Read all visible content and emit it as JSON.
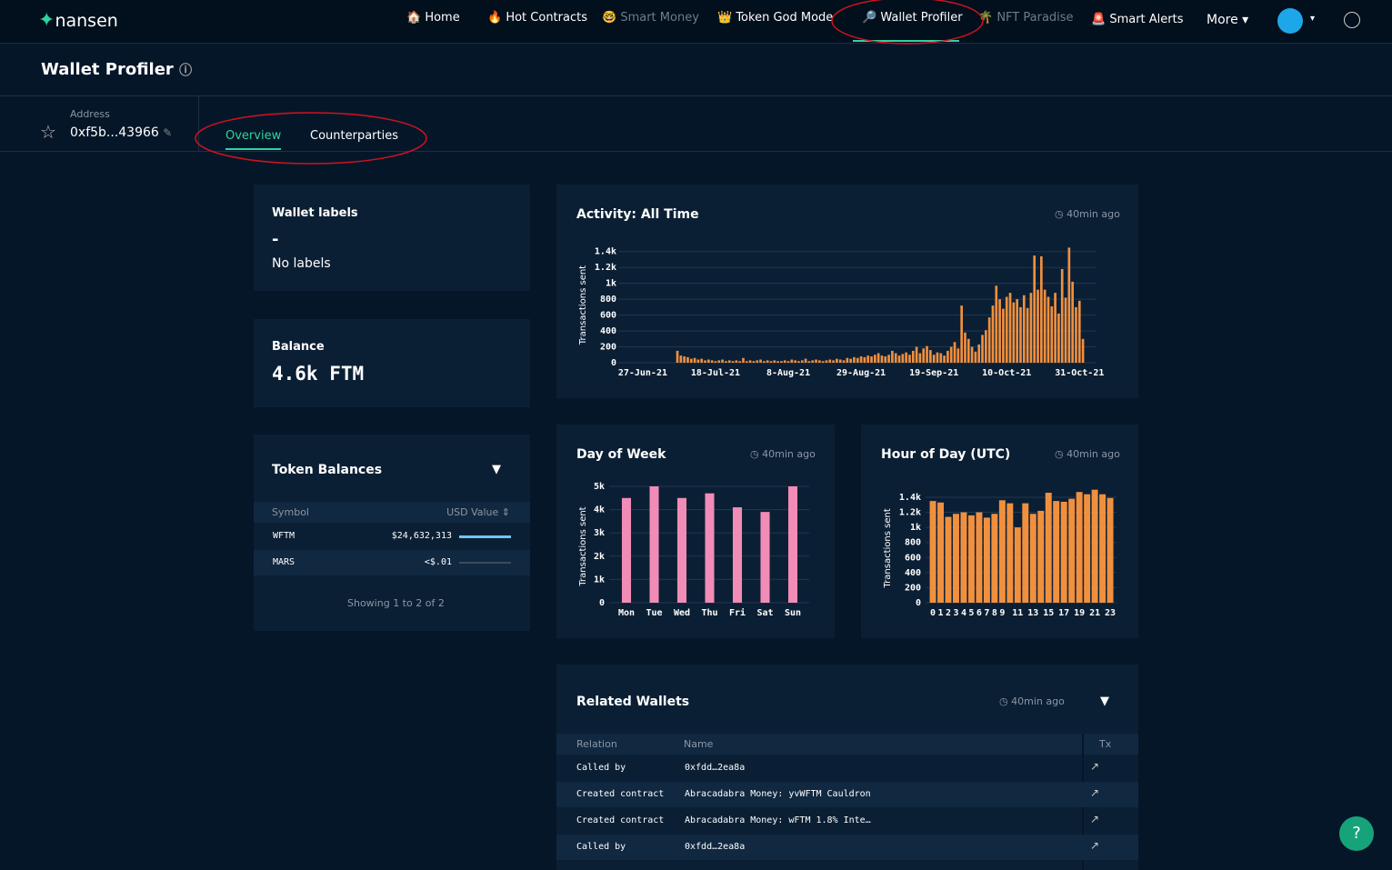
{
  "nav": {
    "logo": "nansen",
    "items": [
      "Home",
      "Hot Contracts",
      "Smart Money",
      "Token God Mode",
      "Wallet Profiler",
      "NFT Paradise",
      "Smart Alerts"
    ],
    "more": "More"
  },
  "header": {
    "title": "Wallet Profiler"
  },
  "address": {
    "label": "Address",
    "value": "0xf5b...43966"
  },
  "tabs": [
    "Overview",
    "Counterparties"
  ],
  "wallet_labels": {
    "title": "Wallet labels",
    "dash": "-",
    "text": "No labels"
  },
  "balance": {
    "title": "Balance",
    "value": "4.6k FTM"
  },
  "token_balances": {
    "title": "Token Balances",
    "columns": [
      "Symbol",
      "USD Value"
    ],
    "rows": [
      [
        "WFTM",
        "$24,632,313"
      ],
      [
        "MARS",
        "<$.01"
      ]
    ],
    "footer": "Showing 1 to 2 of 2"
  },
  "chart_data": [
    {
      "type": "bar",
      "title": "Activity: All Time",
      "updated": "40min ago",
      "ylabel": "Transactions sent",
      "color": "#f0903e",
      "categories": [
        "27-Jun-21",
        null,
        null,
        null,
        null,
        null,
        null,
        null,
        null,
        null,
        null,
        null,
        null,
        null,
        null,
        null,
        null,
        null,
        null,
        null,
        null,
        "18-Jul-21",
        null,
        null,
        null,
        null,
        null,
        null,
        null,
        null,
        null,
        null,
        null,
        null,
        null,
        null,
        null,
        null,
        null,
        null,
        null,
        null,
        "8-Aug-21",
        null,
        null,
        null,
        null,
        null,
        null,
        null,
        null,
        null,
        null,
        null,
        null,
        null,
        null,
        null,
        null,
        null,
        null,
        null,
        null,
        "29-Aug-21",
        null,
        null,
        null,
        null,
        null,
        null,
        null,
        null,
        null,
        null,
        null,
        null,
        null,
        null,
        null,
        null,
        null,
        null,
        null,
        null,
        "19-Sep-21",
        null,
        null,
        null,
        null,
        null,
        null,
        null,
        null,
        null,
        null,
        null,
        null,
        null,
        null,
        null,
        null,
        null,
        null,
        null,
        null,
        "10-Oct-21",
        null,
        null,
        null,
        null,
        null,
        null,
        null,
        null,
        null,
        null,
        null,
        null,
        null,
        null,
        null,
        null,
        null,
        null,
        null,
        null,
        "31-Oct-21",
        null
      ],
      "values": [
        0,
        0,
        0,
        0,
        0,
        0,
        0,
        0,
        0,
        0,
        150,
        90,
        80,
        70,
        50,
        60,
        40,
        50,
        30,
        40,
        30,
        20,
        30,
        40,
        20,
        30,
        20,
        30,
        20,
        60,
        20,
        30,
        20,
        30,
        40,
        20,
        30,
        20,
        30,
        20,
        20,
        30,
        20,
        40,
        30,
        20,
        30,
        50,
        20,
        30,
        40,
        30,
        20,
        30,
        40,
        30,
        50,
        40,
        30,
        60,
        50,
        70,
        60,
        80,
        70,
        90,
        80,
        100,
        120,
        90,
        80,
        100,
        150,
        120,
        90,
        110,
        130,
        100,
        150,
        200,
        120,
        180,
        210,
        160,
        100,
        130,
        120,
        90,
        150,
        200,
        260,
        180,
        720,
        380,
        300,
        200,
        140,
        230,
        350,
        410,
        570,
        720,
        970,
        800,
        680,
        830,
        880,
        760,
        800,
        700,
        850,
        690,
        880,
        1350,
        920,
        1340,
        920,
        830,
        710,
        880,
        620,
        1180,
        820,
        1450,
        1020,
        700,
        780,
        300
      ],
      "ylim": [
        0,
        1500
      ],
      "yticks": [
        0,
        200,
        400,
        600,
        800,
        {
          "value": 1000,
          "label": "1k"
        },
        {
          "value": 1200,
          "label": "1.2k"
        },
        {
          "value": 1400,
          "label": "1.4k"
        }
      ],
      "grid": true
    },
    {
      "type": "bar",
      "title": "Day of Week",
      "updated": "40min ago",
      "ylabel": "Transactions sent",
      "color": "#f08cb6",
      "categories": [
        "Mon",
        "Tue",
        "Wed",
        "Thu",
        "Fri",
        "Sat",
        "Sun"
      ],
      "values": [
        4500,
        5000,
        4500,
        4700,
        4100,
        3900,
        5000
      ],
      "ylim": [
        0,
        5000
      ],
      "yticks": [
        0,
        {
          "value": 1000,
          "label": "1k"
        },
        {
          "value": 2000,
          "label": "2k"
        },
        {
          "value": 3000,
          "label": "3k"
        },
        {
          "value": 4000,
          "label": "4k"
        },
        {
          "value": 5000,
          "label": "5k"
        }
      ],
      "grid": true
    },
    {
      "type": "bar",
      "title": "Hour of Day (UTC)",
      "updated": "40min ago",
      "ylabel": "Transactions sent",
      "color": "#f0903e",
      "categories": [
        "0",
        "1",
        "2",
        "3",
        "4",
        "5",
        "6",
        "7",
        "8",
        "9",
        null,
        "11",
        null,
        "13",
        null,
        "15",
        null,
        "17",
        null,
        "19",
        null,
        "21",
        null,
        "23"
      ],
      "values": [
        1350,
        1330,
        1140,
        1180,
        1200,
        1160,
        1200,
        1130,
        1180,
        1360,
        1320,
        1000,
        1320,
        1180,
        1220,
        1460,
        1350,
        1340,
        1380,
        1470,
        1440,
        1500,
        1440,
        1390
      ],
      "ylim": [
        0,
        1500
      ],
      "yticks": [
        0,
        200,
        400,
        600,
        800,
        {
          "value": 1000,
          "label": "1k"
        },
        {
          "value": 1200,
          "label": "1.2k"
        },
        {
          "value": 1400,
          "label": "1.4k"
        }
      ],
      "grid": true
    }
  ],
  "related_wallets": {
    "title": "Related Wallets",
    "updated": "40min ago",
    "columns": [
      "Relation",
      "Name",
      "Tx"
    ],
    "rows": [
      [
        "Called by",
        "0xfdd…2ea8a"
      ],
      [
        "Created contract",
        "Abracadabra Money: yvWFTM Cauldron"
      ],
      [
        "Created contract",
        "Abracadabra Money: wFTM 1.8% Inte…"
      ],
      [
        "Called by",
        "0xfdd…2ea8a"
      ]
    ]
  }
}
